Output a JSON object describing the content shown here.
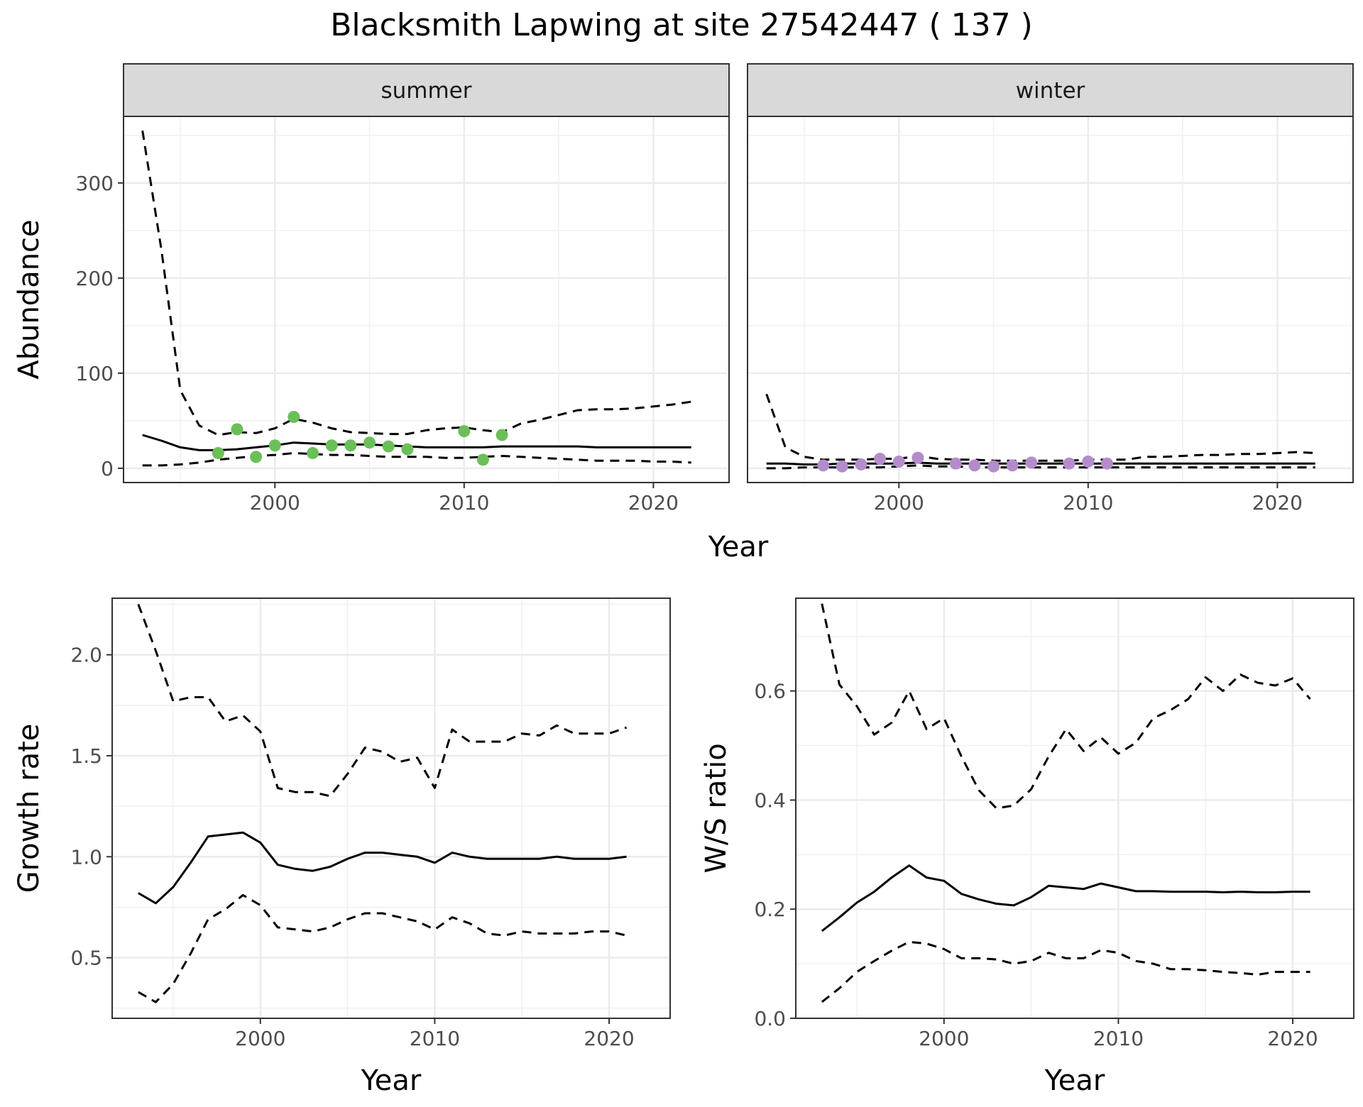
{
  "title": "Blacksmith Lapwing at site 27542447 ( 137 )",
  "chart_data": [
    {
      "type": "line",
      "panel": "abundance",
      "facets": [
        "summer",
        "winter"
      ],
      "xlabel": "Year",
      "ylabel": "Abundance",
      "xlim": [
        1992,
        2024
      ],
      "ylim": [
        -15,
        370
      ],
      "xticks": [
        2000,
        2010,
        2020
      ],
      "yticks": [
        0,
        100,
        200,
        300
      ],
      "grid": true,
      "legend": "none",
      "line_styles": {
        "estimate": "solid",
        "lower": "dashed",
        "upper": "dashed"
      },
      "colors": {
        "summer_points": "#6bbf59",
        "winter_points": "#b48ccc"
      },
      "x": [
        1993,
        1994,
        1995,
        1996,
        1997,
        1998,
        1999,
        2000,
        2001,
        2002,
        2003,
        2004,
        2005,
        2006,
        2007,
        2008,
        2009,
        2010,
        2011,
        2012,
        2013,
        2014,
        2015,
        2016,
        2017,
        2018,
        2019,
        2020,
        2021,
        2022
      ],
      "series": [
        {
          "facet": "summer",
          "role": "estimate",
          "values": [
            35,
            29,
            22,
            19,
            19,
            20,
            22,
            24,
            27,
            26,
            25,
            25,
            25,
            24,
            23,
            22,
            22,
            22,
            22,
            23,
            23,
            23,
            23,
            23,
            22,
            22,
            22,
            22,
            22,
            22
          ]
        },
        {
          "facet": "summer",
          "role": "upper",
          "values": [
            355,
            230,
            82,
            45,
            35,
            38,
            37,
            42,
            52,
            48,
            42,
            38,
            37,
            36,
            36,
            40,
            42,
            43,
            40,
            38,
            47,
            51,
            56,
            61,
            62,
            62,
            63,
            65,
            67,
            70
          ]
        },
        {
          "facet": "summer",
          "role": "lower",
          "values": [
            3,
            3,
            4,
            6,
            9,
            11,
            13,
            14,
            16,
            15,
            14,
            14,
            13,
            12,
            12,
            12,
            11,
            11,
            12,
            13,
            12,
            11,
            10,
            9,
            8,
            8,
            8,
            7,
            7,
            6
          ]
        },
        {
          "facet": "summer",
          "role": "observed",
          "x": [
            1997,
            1998,
            1999,
            2000,
            2001,
            2002,
            2003,
            2004,
            2005,
            2006,
            2007,
            2010,
            2011,
            2012
          ],
          "values": [
            16,
            41,
            12,
            24,
            54,
            16,
            24,
            24,
            27,
            23,
            20,
            39,
            9,
            35
          ]
        },
        {
          "facet": "winter",
          "role": "estimate",
          "values": [
            5,
            5,
            4,
            4,
            5,
            5,
            5,
            5,
            6,
            5,
            5,
            5,
            5,
            5,
            5,
            5,
            5,
            5,
            5,
            5,
            5,
            5,
            5,
            5,
            5,
            5,
            5,
            5,
            5,
            5
          ]
        },
        {
          "facet": "winter",
          "role": "upper",
          "values": [
            78,
            22,
            12,
            9,
            9,
            9,
            10,
            10,
            13,
            10,
            9,
            9,
            8,
            8,
            8,
            8,
            8,
            9,
            9,
            9,
            12,
            12,
            13,
            14,
            14,
            15,
            15,
            16,
            17,
            16
          ]
        },
        {
          "facet": "winter",
          "role": "lower",
          "values": [
            0,
            0,
            1,
            1,
            1,
            1,
            1,
            2,
            3,
            2,
            2,
            1,
            1,
            1,
            1,
            1,
            1,
            1,
            1,
            1,
            1,
            1,
            1,
            1,
            1,
            1,
            1,
            1,
            1,
            1
          ]
        },
        {
          "facet": "winter",
          "role": "observed",
          "x": [
            1996,
            1997,
            1998,
            1999,
            2000,
            2001,
            2003,
            2004,
            2005,
            2006,
            2007,
            2009,
            2010,
            2011
          ],
          "values": [
            3,
            2,
            4,
            10,
            7,
            11,
            5,
            3,
            2,
            3,
            6,
            5,
            7,
            5
          ]
        }
      ]
    },
    {
      "type": "line",
      "panel": "growth",
      "xlabel": "Year",
      "ylabel": "Growth rate",
      "xlim": [
        1991.5,
        2023.5
      ],
      "ylim": [
        0.2,
        2.28
      ],
      "xticks": [
        2000,
        2010,
        2020
      ],
      "yticks": [
        0.5,
        1.0,
        1.5,
        2.0
      ],
      "ytick_labels": [
        "0.5",
        "1.0",
        "1.5",
        "2.0"
      ],
      "grid": true,
      "x": [
        1993,
        1994,
        1995,
        1996,
        1997,
        1998,
        1999,
        2000,
        2001,
        2002,
        2003,
        2004,
        2005,
        2006,
        2007,
        2008,
        2009,
        2010,
        2011,
        2012,
        2013,
        2014,
        2015,
        2016,
        2017,
        2018,
        2019,
        2020,
        2021
      ],
      "series": [
        {
          "role": "estimate",
          "values": [
            0.82,
            0.77,
            0.85,
            0.97,
            1.1,
            1.11,
            1.12,
            1.07,
            0.96,
            0.94,
            0.93,
            0.95,
            0.99,
            1.02,
            1.02,
            1.01,
            1.0,
            0.97,
            1.02,
            1.0,
            0.99,
            0.99,
            0.99,
            0.99,
            1.0,
            0.99,
            0.99,
            0.99,
            1.0
          ]
        },
        {
          "role": "upper",
          "values": [
            2.25,
            2.02,
            1.77,
            1.79,
            1.79,
            1.67,
            1.7,
            1.62,
            1.34,
            1.32,
            1.32,
            1.3,
            1.41,
            1.54,
            1.52,
            1.47,
            1.49,
            1.34,
            1.63,
            1.57,
            1.57,
            1.57,
            1.61,
            1.6,
            1.65,
            1.61,
            1.61,
            1.61,
            1.64
          ]
        },
        {
          "role": "lower",
          "values": [
            0.33,
            0.28,
            0.37,
            0.52,
            0.69,
            0.74,
            0.81,
            0.76,
            0.65,
            0.64,
            0.63,
            0.65,
            0.69,
            0.72,
            0.72,
            0.7,
            0.68,
            0.64,
            0.7,
            0.67,
            0.62,
            0.61,
            0.63,
            0.62,
            0.62,
            0.62,
            0.63,
            0.63,
            0.61
          ]
        }
      ]
    },
    {
      "type": "line",
      "panel": "ratio",
      "xlabel": "Year",
      "ylabel": "W/S ratio",
      "xlim": [
        1991.5,
        2023.5
      ],
      "ylim": [
        0,
        0.77
      ],
      "xticks": [
        2000,
        2010,
        2020
      ],
      "yticks": [
        0.0,
        0.2,
        0.4,
        0.6
      ],
      "ytick_labels": [
        "0.0",
        "0.2",
        "0.4",
        "0.6"
      ],
      "grid": true,
      "x": [
        1993,
        1994,
        1995,
        1996,
        1997,
        1998,
        1999,
        2000,
        2001,
        2002,
        2003,
        2004,
        2005,
        2006,
        2007,
        2008,
        2009,
        2010,
        2011,
        2012,
        2013,
        2014,
        2015,
        2016,
        2017,
        2018,
        2019,
        2020,
        2021
      ],
      "series": [
        {
          "role": "estimate",
          "values": [
            0.16,
            0.185,
            0.212,
            0.232,
            0.258,
            0.28,
            0.258,
            0.252,
            0.228,
            0.218,
            0.21,
            0.207,
            0.222,
            0.243,
            0.24,
            0.237,
            0.247,
            0.24,
            0.233,
            0.233,
            0.232,
            0.232,
            0.232,
            0.231,
            0.232,
            0.231,
            0.231,
            0.232,
            0.232
          ]
        },
        {
          "role": "upper",
          "values": [
            0.76,
            0.612,
            0.572,
            0.52,
            0.542,
            0.6,
            0.53,
            0.55,
            0.48,
            0.418,
            0.385,
            0.39,
            0.42,
            0.48,
            0.53,
            0.49,
            0.515,
            0.485,
            0.505,
            0.55,
            0.565,
            0.585,
            0.625,
            0.6,
            0.63,
            0.615,
            0.61,
            0.623,
            0.585
          ]
        },
        {
          "role": "lower",
          "values": [
            0.03,
            0.055,
            0.085,
            0.105,
            0.124,
            0.14,
            0.137,
            0.127,
            0.11,
            0.11,
            0.108,
            0.1,
            0.105,
            0.12,
            0.11,
            0.11,
            0.125,
            0.12,
            0.105,
            0.1,
            0.09,
            0.09,
            0.088,
            0.085,
            0.083,
            0.08,
            0.085,
            0.085,
            0.085
          ]
        }
      ]
    }
  ]
}
